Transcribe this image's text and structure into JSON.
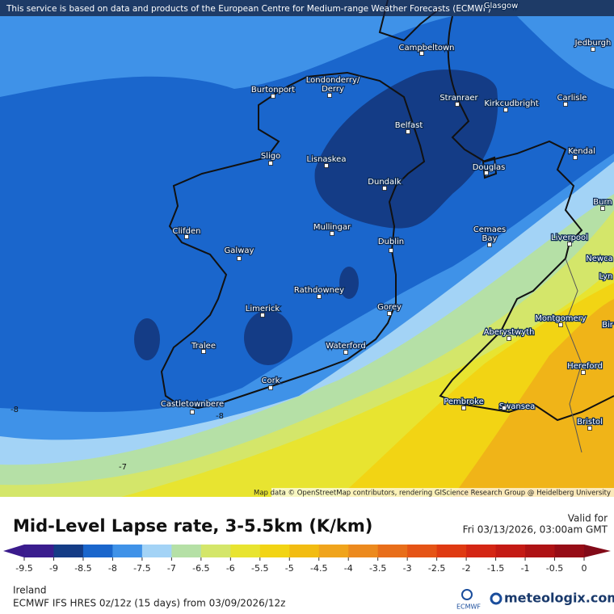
{
  "header": {
    "notice": "This service is based on data and products of the European Centre for Medium-range Weather Forecasts (ECMWF)"
  },
  "map": {
    "labels": [
      "Glasgow",
      "Jedburgh",
      "Campbeltown",
      "Londonderry/",
      "Derry",
      "Burtonport",
      "Stranraer",
      "Kirkcudbright",
      "Carlisle",
      "Belfast",
      "Kendal",
      "Sligo",
      "Lisnaskea",
      "Douglas",
      "Dundalk",
      "Burn",
      "Clifden",
      "Mullingar",
      "Cemaes",
      "Bay",
      "Liverpool",
      "Dublin",
      "Galway",
      "Newca",
      "Lyn",
      "Rathdowney",
      "Limerick",
      "Gorey",
      "Montgomery",
      "Bir",
      "Aberystwyth",
      "Tralee",
      "Waterford",
      "Hereford",
      "Cork",
      "Pembroke",
      "Swansea",
      "Castletownbere",
      "Bristol"
    ],
    "contour_labels": [
      -8,
      -8,
      -7
    ],
    "attribution": "Map data © OpenStreetMap contributors, rendering GIScience Research Group @ Heidelberg University"
  },
  "title": "Mid-Level Lapse rate, 3-5.5km (K/km)",
  "valid": {
    "label": "Valid for",
    "time": "Fri 03/13/2026, 03:00am GMT"
  },
  "legend": {
    "ticks": [
      -9.5,
      -9,
      -8.5,
      -8,
      -7.5,
      -7,
      -6.5,
      -6,
      -5.5,
      -5,
      -4.5,
      -4,
      -3.5,
      -3,
      -2.5,
      -2,
      -1.5,
      -1,
      -0.5,
      0
    ],
    "colors": [
      "#3a1a8c",
      "#3a1d8e",
      "#143c86",
      "#1a66cc",
      "#3f92e8",
      "#a3d3f6",
      "#b5e0a6",
      "#d4e66a",
      "#e8e430",
      "#f2d414",
      "#f2bc12",
      "#f0a41c",
      "#ec8a1e",
      "#e86e1a",
      "#e55416",
      "#df3a12",
      "#d42614",
      "#c41a14",
      "#ae1214",
      "#960c16",
      "#820a18"
    ]
  },
  "footer": {
    "region": "Ireland",
    "model": "ECMWF IFS HRES 0z/12z (15 days) from 03/09/2026/12z",
    "logo_small": "ECMWF",
    "logo": "meteologix.com"
  }
}
